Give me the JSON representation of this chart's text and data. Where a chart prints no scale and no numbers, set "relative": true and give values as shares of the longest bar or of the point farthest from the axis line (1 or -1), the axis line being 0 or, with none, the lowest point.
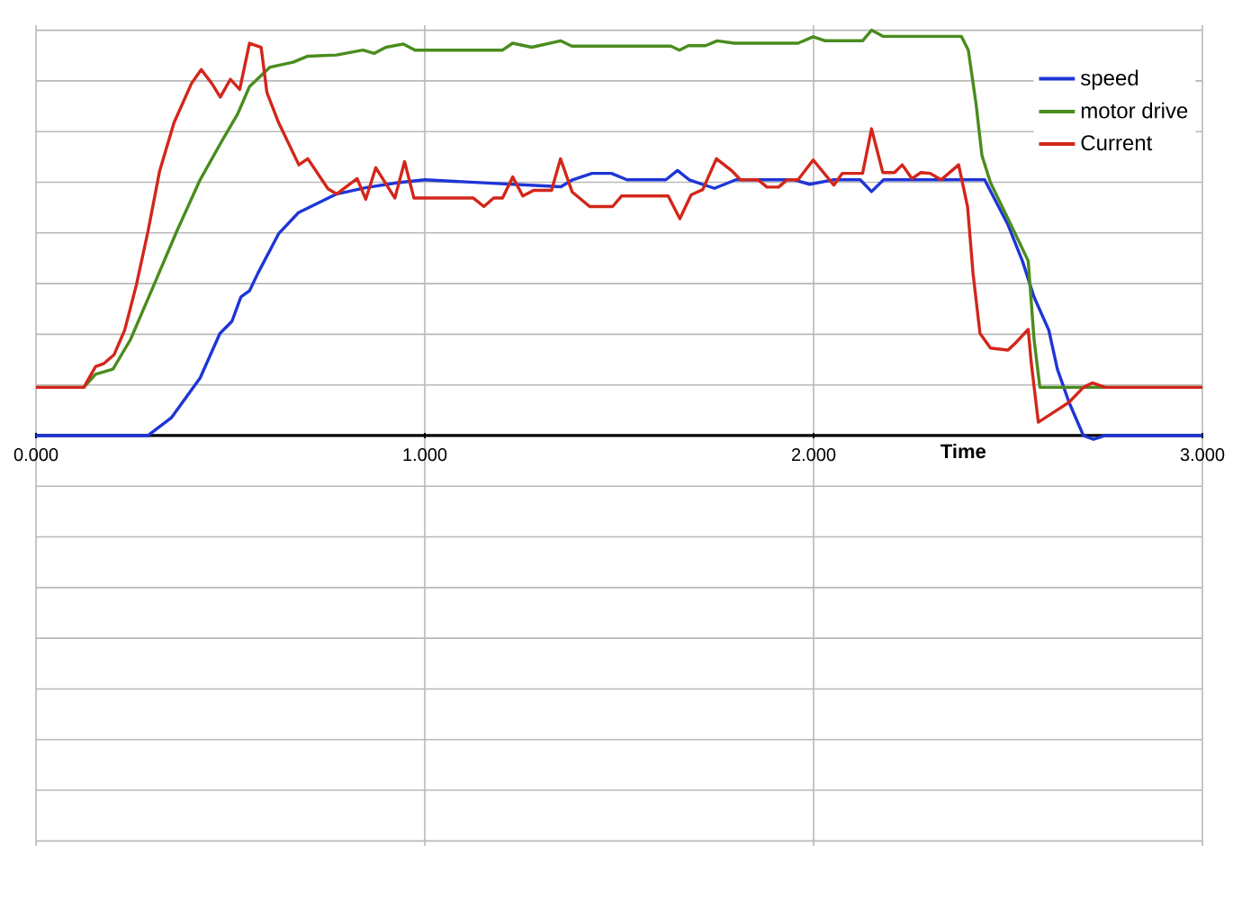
{
  "chart_data": {
    "type": "line",
    "relative": true,
    "xlabel": "Time",
    "grid": true,
    "legend": "top right",
    "xlim": [
      0,
      3
    ],
    "xticks": [
      {
        "value": 0,
        "label": "0.000"
      },
      {
        "value": 1,
        "label": "1.000"
      },
      {
        "value": 2,
        "label": "2.000"
      },
      {
        "value": 3,
        "label": "3.000"
      }
    ],
    "series": [
      {
        "name": "speed",
        "color": "#1f35d6",
        "x": [
          0,
          0.288,
          0.348,
          0.422,
          0.473,
          0.504,
          0.527,
          0.549,
          0.571,
          0.624,
          0.675,
          0.72,
          0.773,
          0.85,
          0.93,
          1.0,
          1.35,
          1.38,
          1.43,
          1.48,
          1.52,
          1.62,
          1.65,
          1.68,
          1.745,
          1.8,
          1.95,
          1.99,
          2.05,
          2.12,
          2.149,
          2.18,
          2.44,
          2.5,
          2.537,
          2.567,
          2.605,
          2.627,
          2.657,
          2.694,
          2.72,
          2.75,
          3.0
        ],
        "values": [
          0,
          0,
          0.044,
          0.142,
          0.252,
          0.282,
          0.342,
          0.357,
          0.401,
          0.498,
          0.55,
          0.571,
          0.596,
          0.612,
          0.624,
          0.631,
          0.614,
          0.631,
          0.647,
          0.647,
          0.631,
          0.631,
          0.654,
          0.631,
          0.61,
          0.631,
          0.631,
          0.62,
          0.631,
          0.631,
          0.602,
          0.631,
          0.631,
          0.52,
          0.431,
          0.342,
          0.26,
          0.164,
          0.082,
          0,
          -0.009,
          0,
          0
        ]
      },
      {
        "name": "motor drive",
        "color": "#4a8c1e",
        "x": [
          0,
          0.123,
          0.153,
          0.198,
          0.243,
          0.303,
          0.362,
          0.422,
          0.474,
          0.519,
          0.549,
          0.602,
          0.661,
          0.699,
          0.773,
          0.841,
          0.87,
          0.9,
          0.945,
          0.975,
          1.2,
          1.226,
          1.275,
          1.349,
          1.378,
          1.633,
          1.655,
          1.678,
          1.722,
          1.752,
          1.796,
          1.96,
          1.999,
          2.03,
          2.126,
          2.149,
          2.178,
          2.38,
          2.398,
          2.418,
          2.433,
          2.455,
          2.5,
          2.53,
          2.552,
          2.567,
          2.582,
          3.0
        ],
        "values": [
          0.119,
          0.119,
          0.151,
          0.164,
          0.237,
          0.371,
          0.504,
          0.631,
          0.72,
          0.794,
          0.861,
          0.909,
          0.921,
          0.936,
          0.939,
          0.951,
          0.943,
          0.958,
          0.966,
          0.951,
          0.951,
          0.968,
          0.958,
          0.974,
          0.961,
          0.961,
          0.951,
          0.962,
          0.962,
          0.974,
          0.968,
          0.968,
          0.984,
          0.974,
          0.974,
          1.0,
          0.985,
          0.985,
          0.951,
          0.817,
          0.691,
          0.624,
          0.535,
          0.475,
          0.431,
          0.238,
          0.119,
          0.119
        ]
      },
      {
        "name": "Current",
        "color": "#d3261a",
        "x": [
          0,
          0.123,
          0.153,
          0.175,
          0.201,
          0.228,
          0.258,
          0.288,
          0.318,
          0.355,
          0.4,
          0.425,
          0.452,
          0.474,
          0.5,
          0.524,
          0.549,
          0.579,
          0.594,
          0.624,
          0.676,
          0.699,
          0.751,
          0.773,
          0.826,
          0.848,
          0.874,
          0.923,
          0.948,
          0.972,
          1.125,
          1.152,
          1.177,
          1.2,
          1.226,
          1.252,
          1.28,
          1.326,
          1.349,
          1.379,
          1.424,
          1.483,
          1.506,
          1.626,
          1.656,
          1.685,
          1.715,
          1.75,
          1.79,
          1.812,
          1.857,
          1.88,
          1.91,
          1.932,
          1.96,
          1.999,
          2.052,
          2.074,
          2.126,
          2.149,
          2.178,
          2.208,
          2.228,
          2.253,
          2.276,
          2.3,
          2.328,
          2.373,
          2.396,
          2.41,
          2.428,
          2.455,
          2.5,
          2.522,
          2.552,
          2.56,
          2.578,
          2.62,
          2.657,
          2.694,
          2.717,
          2.75,
          3.0
        ],
        "values": [
          0.119,
          0.119,
          0.17,
          0.178,
          0.2,
          0.26,
          0.371,
          0.504,
          0.653,
          0.772,
          0.869,
          0.903,
          0.869,
          0.835,
          0.879,
          0.854,
          0.968,
          0.958,
          0.846,
          0.772,
          0.668,
          0.683,
          0.609,
          0.596,
          0.634,
          0.583,
          0.661,
          0.586,
          0.676,
          0.586,
          0.586,
          0.565,
          0.586,
          0.586,
          0.638,
          0.591,
          0.605,
          0.605,
          0.683,
          0.601,
          0.565,
          0.565,
          0.591,
          0.591,
          0.535,
          0.594,
          0.607,
          0.683,
          0.653,
          0.631,
          0.631,
          0.613,
          0.613,
          0.631,
          0.631,
          0.68,
          0.618,
          0.647,
          0.647,
          0.757,
          0.649,
          0.649,
          0.668,
          0.634,
          0.649,
          0.647,
          0.631,
          0.668,
          0.565,
          0.401,
          0.252,
          0.216,
          0.211,
          0.231,
          0.262,
          0.178,
          0.033,
          0.059,
          0.082,
          0.119,
          0.13,
          0.119,
          0.119
        ]
      }
    ]
  }
}
